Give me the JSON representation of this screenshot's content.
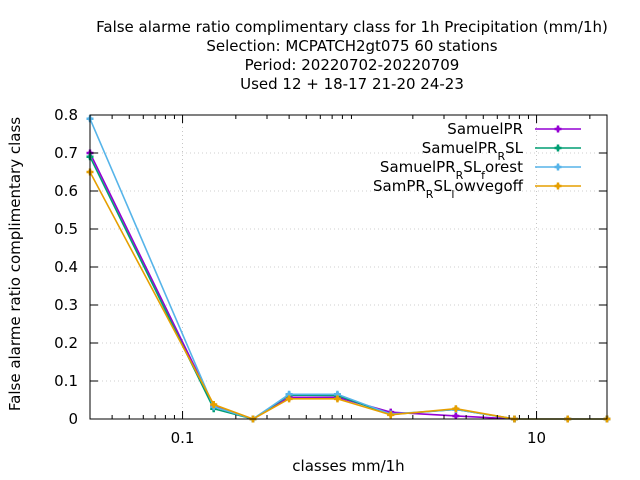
{
  "chart_data": {
    "type": "line",
    "title_lines": [
      "False alarme ratio complimentary class  for 1h Precipitation (mm/1h)",
      "Selection: MCPATCH2gt075     60 stations",
      "Period: 20220702-20220709",
      "Used  12 + 18-17 21-20 24-23"
    ],
    "xlabel": "classes mm/1h",
    "ylabel": "False alarme ratio complimentary class",
    "x_scale": "log",
    "xlim": [
      0.03,
      25
    ],
    "ylim": [
      0,
      0.8
    ],
    "x_ticks": [
      {
        "value": 0.1,
        "label": "0.1"
      },
      {
        "value": 10,
        "label": "10"
      }
    ],
    "y_ticks": [
      {
        "value": 0,
        "label": "0"
      },
      {
        "value": 0.1,
        "label": "0.1"
      },
      {
        "value": 0.2,
        "label": "0.2"
      },
      {
        "value": 0.3,
        "label": "0.3"
      },
      {
        "value": 0.4,
        "label": "0.4"
      },
      {
        "value": 0.5,
        "label": "0.5"
      },
      {
        "value": 0.6,
        "label": "0.6"
      },
      {
        "value": 0.7,
        "label": "0.7"
      },
      {
        "value": 0.8,
        "label": "0.8"
      }
    ],
    "grid": true,
    "legend_position": "top-right",
    "x": [
      0.03,
      0.15,
      0.25,
      0.4,
      0.75,
      1.5,
      3.5,
      7.5,
      15,
      25
    ],
    "series": [
      {
        "name": "SamuelPR",
        "legend_main": "SamuelPR",
        "legend_parts": [],
        "color": "#9400d3",
        "values": [
          0.7,
          0.035,
          0.0,
          0.057,
          0.057,
          0.018,
          0.008,
          0.0,
          0.0,
          0.0
        ]
      },
      {
        "name": "SamuelPR_RSL",
        "legend_main": "SamuelPR",
        "legend_parts": [
          [
            "R",
            "SL"
          ]
        ],
        "color": "#009e73",
        "values": [
          0.69,
          0.027,
          0.0,
          0.063,
          0.062,
          0.012,
          0.025,
          0.0,
          0.0,
          0.0
        ]
      },
      {
        "name": "SamuelPR_RSL_forest",
        "legend_main": "SamuelPR",
        "legend_parts": [
          [
            "R",
            "SL"
          ],
          [
            "f",
            "orest"
          ]
        ],
        "color": "#56b4e9",
        "values": [
          0.79,
          0.032,
          0.0,
          0.065,
          0.065,
          0.013,
          0.025,
          0.0,
          0.0,
          0.0
        ]
      },
      {
        "name": "SamPR_RSL_lowvegoff",
        "legend_main": "SamPR",
        "legend_parts": [
          [
            "R",
            "SL"
          ],
          [
            "l",
            "owvegoff"
          ]
        ],
        "color": "#e69f00",
        "values": [
          0.65,
          0.038,
          0.0,
          0.053,
          0.053,
          0.011,
          0.027,
          0.0,
          0.0,
          0.0
        ]
      }
    ]
  }
}
